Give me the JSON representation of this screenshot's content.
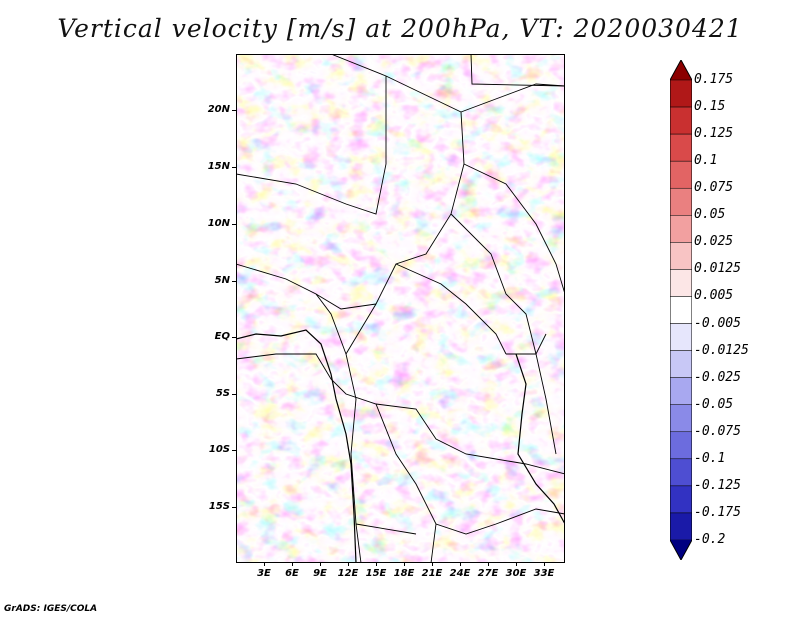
{
  "title": "Vertical velocity [m/s] at 200hPa, VT: 2020030421",
  "y_axis_labels": [
    "20N",
    "15N",
    "10N",
    "5N",
    "EQ",
    "5S",
    "10S",
    "15S"
  ],
  "x_axis_labels": [
    "3E",
    "6E",
    "9E",
    "12E",
    "15E",
    "18E",
    "21E",
    "24E",
    "27E",
    "30E",
    "33E"
  ],
  "colorbar": {
    "labels": [
      "0.175",
      "0.15",
      "0.125",
      "0.1",
      "0.075",
      "0.05",
      "0.025",
      "0.0125",
      "0.005",
      "-0.005",
      "-0.0125",
      "-0.025",
      "-0.05",
      "-0.075",
      "-0.1",
      "-0.125",
      "-0.175",
      "-0.2"
    ],
    "colors": [
      "#8b0000",
      "#b01818",
      "#c93030",
      "#d94a4a",
      "#e26464",
      "#ea8080",
      "#f2a0a0",
      "#f8c4c4",
      "#fce6e6",
      "#ffffff",
      "#e6e6fc",
      "#c8c8f6",
      "#a8a8f0",
      "#8a8ae8",
      "#6c6cde",
      "#4e4ed2",
      "#3232c2",
      "#1a1aa8",
      "#000080"
    ]
  },
  "footer": "GrADS: IGES/COLA"
}
